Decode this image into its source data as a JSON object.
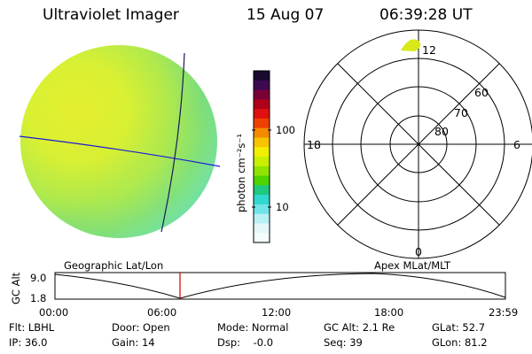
{
  "header": {
    "instrument": "Ultraviolet Imager",
    "date": "15 Aug 07",
    "time": "06:39:28 UT"
  },
  "colorbar": {
    "unit_label": "photon cm⁻²s⁻¹",
    "tick_labels": [
      "100",
      "10"
    ],
    "colors": [
      "#1a0a2e",
      "#3b0a50",
      "#7a0038",
      "#b0001a",
      "#e01010",
      "#f04000",
      "#f48a00",
      "#f8c400",
      "#f0f000",
      "#c8f000",
      "#90e400",
      "#50d400",
      "#20c880",
      "#30d8d0",
      "#70e4e8",
      "#b8f0f4",
      "#e4f8fa",
      "#f4fcfc"
    ]
  },
  "polar_plot": {
    "mlt_labels": [
      "12",
      "18",
      "6",
      "0"
    ],
    "lat_labels": [
      "60",
      "70",
      "80"
    ]
  },
  "timeline": {
    "left_title": "Geographic Lat/Lon",
    "right_title": "Apex MLat/MLT",
    "axis_label": "GC Alt",
    "y_ticks": [
      "9.0",
      "1.8"
    ],
    "x_ticks": [
      "00:00",
      "06:00",
      "12:00",
      "18:00",
      "23:59"
    ]
  },
  "footer": {
    "row1": [
      "Flt: LBHL",
      "Door: Open",
      "Mode: Normal",
      "GC Alt: 2.1 Re",
      "GLat: 52.7"
    ],
    "row2": [
      "IP: 36.0",
      "Gain: 14",
      "Dsp:    -0.0",
      "Seq: 39",
      "GLon: 81.2"
    ]
  }
}
